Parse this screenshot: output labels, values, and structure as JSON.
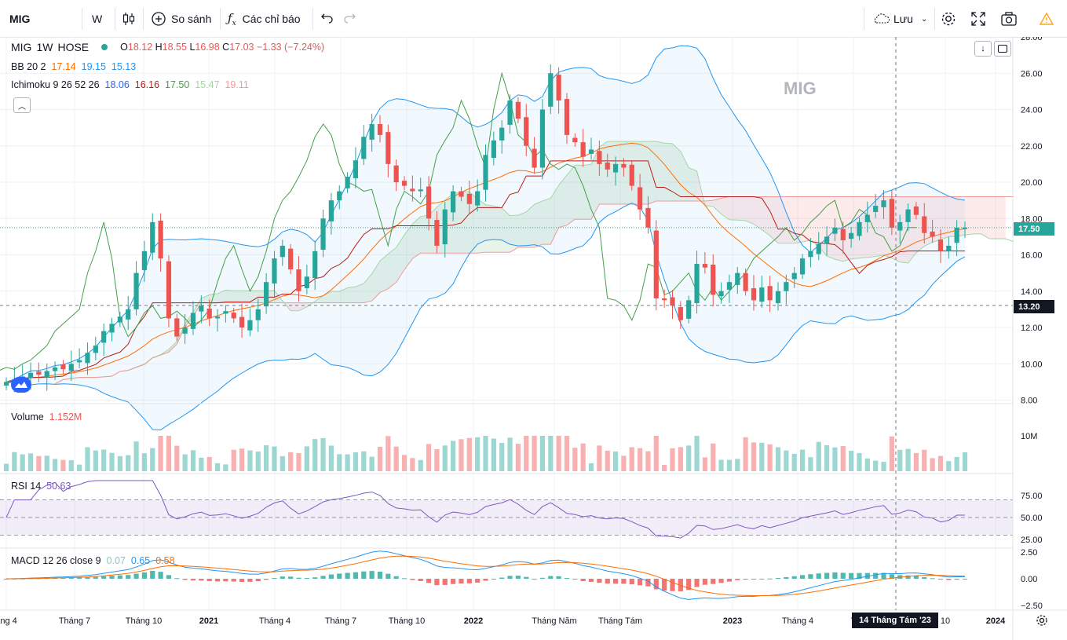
{
  "toolbar": {
    "symbol": "MIG",
    "interval": "W",
    "compare_label": "So sánh",
    "indicators_label": "Các chỉ báo",
    "save_label": "Lưu"
  },
  "legend": {
    "symbol": "MIG",
    "interval": "1W",
    "exchange": "HOSE",
    "o_label": "O",
    "o_value": "18.12",
    "h_label": "H",
    "h_value": "18.55",
    "l_label": "L",
    "l_value": "16.98",
    "c_label": "C",
    "c_value": "17.03",
    "change": "−1.33 (−7.24%)",
    "bb_label": "BB 20 2",
    "bb_mid": "17.14",
    "bb_upper": "19.15",
    "bb_lower": "15.13",
    "ichi_label": "Ichimoku 9 26 52 26",
    "ichi_1": "18.06",
    "ichi_2": "16.16",
    "ichi_3": "17.50",
    "ichi_4": "15.47",
    "ichi_5": "19.11",
    "volume_label": "Volume",
    "volume_value": "1.152M",
    "rsi_label": "RSI 14",
    "rsi_value": "50.63",
    "macd_label": "MACD 12 26 close 9",
    "macd_hist": "0.07",
    "macd_line": "0.65",
    "macd_signal": "0.58"
  },
  "watermark": "MIG",
  "price_tags": {
    "last": "17.50",
    "crosshair": "13.20"
  },
  "crosshair_date": "14 Tháng Tám '23",
  "x_labels": [
    "áng 4",
    "Tháng 7",
    "Tháng 10",
    "2021",
    "Tháng 4",
    "Tháng 7",
    "Tháng 10",
    "2022",
    "Tháng Năm",
    "Tháng Tám",
    "2023",
    "Tháng 4",
    "T",
    "10",
    "2024"
  ],
  "price_ticks": [
    "28.00",
    "26.00",
    "24.00",
    "22.00",
    "20.00",
    "18.00",
    "16.00",
    "14.00",
    "12.00",
    "10.00",
    "8.00"
  ],
  "volume_ticks": [
    "10M"
  ],
  "rsi_ticks": [
    "75.00",
    "50.00",
    "25.00"
  ],
  "macd_ticks": [
    "2.50",
    "0.00",
    "−2.50"
  ],
  "colors": {
    "up": "#26a69a",
    "down": "#ef5350",
    "bb": "#2196f3",
    "bb_mid": "#ff6d00",
    "tenkan": "#2962ff",
    "kijun": "#b71c1c",
    "lagging": "#43a047",
    "rsi": "#7e57c2",
    "macd": "#2196f3",
    "signal": "#ff6d00"
  },
  "chart_data": {
    "type": "candlestick",
    "timeframe": "weekly",
    "ylim": [
      8,
      28
    ],
    "anchors_weeks_index": [
      0,
      24
    ],
    "closes_approx": [
      9.0,
      9.1,
      9.3,
      9.5,
      9.4,
      9.6,
      9.8,
      9.7,
      10.0,
      10.2,
      10.6,
      11.0,
      11.8,
      12.2,
      12.6,
      13.0,
      15.0,
      16.2,
      17.8,
      15.8,
      12.5,
      11.5,
      12.0,
      12.8,
      13.2,
      12.5,
      12.6,
      12.9,
      12.5,
      12.0,
      12.4,
      13.0,
      14.5,
      15.8,
      16.5,
      15.2,
      14.0,
      14.8,
      16.2,
      18.0,
      19.0,
      19.5,
      20.3,
      21.2,
      22.5,
      23.2,
      22.6,
      21.0,
      20.0,
      19.8,
      19.5,
      19.6,
      18.0,
      16.5,
      18.5,
      19.5,
      19.2,
      18.8,
      19.5,
      21.5,
      22.3,
      23.0,
      24.5,
      23.5,
      22.0,
      20.8,
      24.0,
      26.0,
      24.5,
      22.6,
      22.2,
      21.4,
      21.8,
      21.0,
      20.7,
      21.0,
      20.8,
      19.8,
      18.5,
      17.5,
      13.6,
      13.5,
      13.2,
      12.4,
      13.5,
      15.5,
      15.3,
      13.8,
      14.0,
      14.5,
      15.0,
      14.0,
      13.5,
      14.2,
      13.5,
      14.0,
      14.5,
      15.0,
      15.8,
      16.2,
      16.6,
      17.0,
      17.5,
      16.8,
      17.2,
      17.8,
      18.2,
      18.7,
      19.0,
      17.5,
      17.8,
      18.5,
      18.2,
      17.2,
      17.0,
      16.2,
      16.5,
      17.5,
      17.5
    ],
    "last_close": 17.5,
    "volume_last": "1.152M",
    "rsi_last": 50.63,
    "macd": {
      "hist": 0.07,
      "macd": 0.65,
      "signal": 0.58
    }
  }
}
